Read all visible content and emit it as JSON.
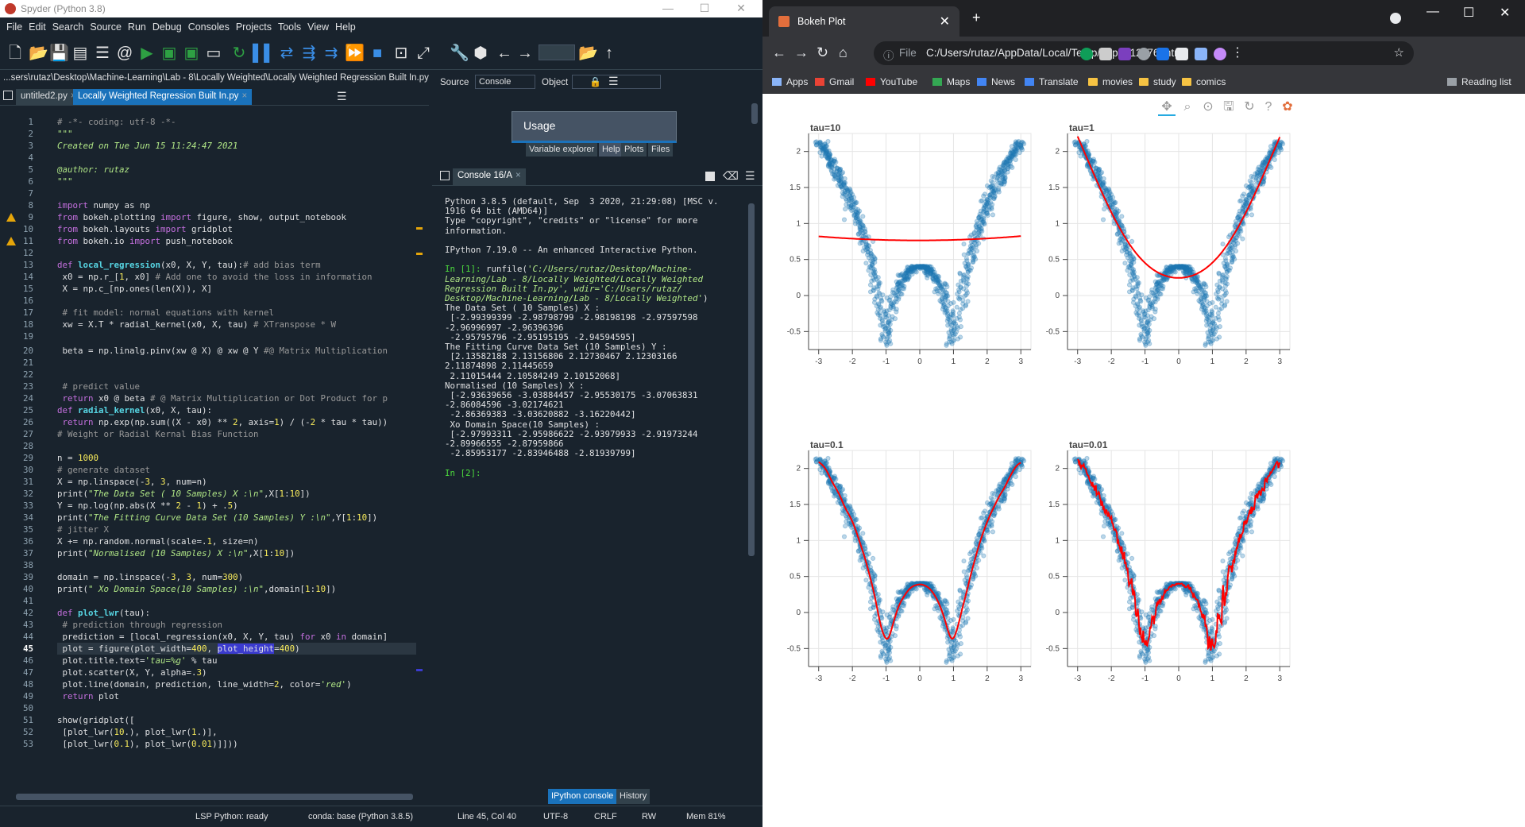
{
  "spyder": {
    "title": "Spyder (Python 3.8)",
    "menu": [
      "File",
      "Edit",
      "Search",
      "Source",
      "Run",
      "Debug",
      "Consoles",
      "Projects",
      "Tools",
      "View",
      "Help"
    ],
    "path": "...sers\\rutaz\\Desktop\\Machine-Learning\\Lab - 8\\Locally Weighted\\Locally Weighted Regression Built In.py",
    "editor_tabs": [
      "untitled2.py",
      "Locally Weighted Regression Built In.py"
    ],
    "code": [
      "# -*- coding: utf-8 -*-",
      "\"\"\"",
      "Created on Tue Jun 15 11:24:47 2021",
      "",
      "@author: rutaz",
      "\"\"\"",
      "",
      "import numpy as np",
      "from bokeh.plotting import figure, show, output_notebook",
      "from bokeh.layouts import gridplot",
      "from bokeh.io import push_notebook",
      "",
      "def local_regression(x0, X, Y, tau):# add bias term",
      " x0 = np.r_[1, x0] # Add one to avoid the loss in information",
      " X = np.c_[np.ones(len(X)), X]",
      "",
      " # fit model: normal equations with kernel",
      " xw = X.T * radial_kernel(x0, X, tau) # XTranspose * W",
      "",
      " beta = np.linalg.pinv(xw @ X) @ xw @ Y #@ Matrix Multiplication",
      "",
      "",
      " # predict value",
      " return x0 @ beta # @ Matrix Multiplication or Dot Product for p",
      "def radial_kernel(x0, X, tau):",
      " return np.exp(np.sum((X - x0) ** 2, axis=1) / (-2 * tau * tau))",
      "# Weight or Radial Kernal Bias Function",
      "",
      "n = 1000",
      "# generate dataset",
      "X = np.linspace(-3, 3, num=n)",
      "print(\"The Data Set ( 10 Samples) X :\\n\",X[1:10])",
      "Y = np.log(np.abs(X ** 2 - 1) + .5)",
      "print(\"The Fitting Curve Data Set (10 Samples) Y :\\n\",Y[1:10])",
      "# jitter X",
      "X += np.random.normal(scale=.1, size=n)",
      "print(\"Normalised (10 Samples) X :\\n\",X[1:10])",
      "",
      "domain = np.linspace(-3, 3, num=300)",
      "print(\" Xo Domain Space(10 Samples) :\\n\",domain[1:10])",
      "",
      "def plot_lwr(tau):",
      " # prediction through regression",
      " prediction = [local_regression(x0, X, Y, tau) for x0 in domain]",
      " plot = figure(plot_width=400, plot_height=400)",
      " plot.title.text='tau=%g' % tau",
      " plot.scatter(X, Y, alpha=.3)",
      " plot.line(domain, prediction, line_width=2, color='red')",
      " return plot",
      "",
      "show(gridplot([",
      " [plot_lwr(10.), plot_lwr(1.)],",
      " [plot_lwr(0.1), plot_lwr(0.01)]]))"
    ],
    "help": {
      "source_label": "Source",
      "source_value": "Console",
      "object_label": "Object",
      "usage_title": "Usage",
      "pane_tabs": [
        "Variable explorer",
        "Help",
        "Plots",
        "Files"
      ]
    },
    "console_tab": "Console 16/A",
    "console_lines": [
      "Python 3.8.5 (default, Sep  3 2020, 21:29:08) [MSC v.",
      "1916 64 bit (AMD64)]",
      "Type \"copyright\", \"credits\" or \"license\" for more",
      "information.",
      "",
      "IPython 7.19.0 -- An enhanced Interactive Python.",
      "",
      "In [1]: runfile('C:/Users/rutaz/Desktop/Machine-",
      "Learning/Lab - 8/Locally Weighted/Locally Weighted",
      "Regression Built In.py', wdir='C:/Users/rutaz/",
      "Desktop/Machine-Learning/Lab - 8/Locally Weighted')",
      "The Data Set ( 10 Samples) X :",
      " [-2.99399399 -2.98798799 -2.98198198 -2.97597598",
      "-2.96996997 -2.96396396",
      " -2.95795796 -2.95195195 -2.94594595]",
      "The Fitting Curve Data Set (10 Samples) Y :",
      " [2.13582188 2.13156806 2.12730467 2.12303166",
      "2.11874898 2.11445659",
      " 2.11015444 2.10584249 2.10152068]",
      "Normalised (10 Samples) X :",
      " [-2.93639656 -3.03884457 -2.95530175 -3.07063831",
      "-2.86084596 -3.02174621",
      " -2.86369383 -3.03620882 -3.16220442]",
      " Xo Domain Space(10 Samples) :",
      " [-2.97993311 -2.95986622 -2.93979933 -2.91973244",
      "-2.89966555 -2.87959866",
      " -2.85953177 -2.83946488 -2.81939799]",
      "",
      "In [2]:"
    ],
    "bottom_tabs": [
      "IPython console",
      "History"
    ],
    "status": {
      "lsp": "LSP Python: ready",
      "conda": "conda: base (Python 3.8.5)",
      "position": "Line 45, Col 40",
      "encoding": "UTF-8",
      "eol": "CRLF",
      "rw": "RW",
      "mem": "Mem 81%"
    },
    "current_line": 45,
    "warning_lines": [
      9,
      11
    ]
  },
  "chrome": {
    "tab_title": "Bokeh Plot",
    "omnibox_prefix": "File",
    "url": "C:/Users/rutaz/AppData/Local/Temp/tmpd612k76f.html",
    "bookmarks": [
      "Apps",
      "Gmail",
      "YouTube",
      "Maps",
      "News",
      "Translate",
      "movies",
      "study",
      "comics"
    ],
    "reading_list": "Reading list",
    "colors": {
      "scatter": "#1f77b4",
      "line": "#ff0000"
    }
  },
  "chart_data": [
    {
      "type": "scatter",
      "title": "tau=10",
      "tau": 10,
      "xlim": [
        -3.3,
        3.3
      ],
      "ylim": [
        -0.75,
        2.25
      ],
      "xticks": [
        -3,
        -2,
        -1,
        0,
        1,
        2,
        3
      ],
      "yticks": [
        -0.5,
        0,
        0.5,
        1,
        1.5,
        2
      ],
      "series": [
        {
          "kind": "scatter",
          "formula": "log(|x^2-1|+0.5) with x jitter 0.1",
          "n": 1000
        },
        {
          "kind": "line",
          "x": [
            -3,
            -2,
            -1,
            0,
            1,
            2,
            3
          ],
          "y": [
            0.82,
            0.79,
            0.77,
            0.76,
            0.77,
            0.79,
            0.83
          ]
        }
      ]
    },
    {
      "type": "scatter",
      "title": "tau=1",
      "tau": 1,
      "xlim": [
        -3.3,
        3.3
      ],
      "ylim": [
        -0.75,
        2.25
      ],
      "xticks": [
        -3,
        -2,
        -1,
        0,
        1,
        2,
        3
      ],
      "yticks": [
        -0.5,
        0,
        0.5,
        1,
        1.5,
        2
      ],
      "series": [
        {
          "kind": "scatter",
          "n": 1000
        },
        {
          "kind": "line",
          "x": [
            -3,
            -2.5,
            -2,
            -1.5,
            -1,
            -0.5,
            0,
            0.5,
            1,
            1.5,
            2,
            2.5,
            3
          ],
          "y": [
            2.2,
            1.75,
            1.3,
            0.88,
            0.55,
            0.33,
            0.26,
            0.33,
            0.55,
            0.88,
            1.3,
            1.75,
            2.2
          ]
        }
      ]
    },
    {
      "type": "scatter",
      "title": "tau=0.1",
      "tau": 0.1,
      "xlim": [
        -3.3,
        3.3
      ],
      "ylim": [
        -0.75,
        2.25
      ],
      "xticks": [
        -3,
        -2,
        -1,
        0,
        1,
        2,
        3
      ],
      "yticks": [
        -0.5,
        0,
        0.5,
        1,
        1.5,
        2
      ],
      "series": [
        {
          "kind": "scatter",
          "n": 1000
        },
        {
          "kind": "line",
          "smooth": true
        }
      ]
    },
    {
      "type": "scatter",
      "title": "tau=0.01",
      "tau": 0.01,
      "xlim": [
        -3.3,
        3.3
      ],
      "ylim": [
        -0.75,
        2.25
      ],
      "xticks": [
        -3,
        -2,
        -1,
        0,
        1,
        2,
        3
      ],
      "yticks": [
        -0.5,
        0,
        0.5,
        1,
        1.5,
        2
      ],
      "series": [
        {
          "kind": "scatter",
          "n": 1000
        },
        {
          "kind": "line",
          "smooth": false
        }
      ]
    }
  ]
}
